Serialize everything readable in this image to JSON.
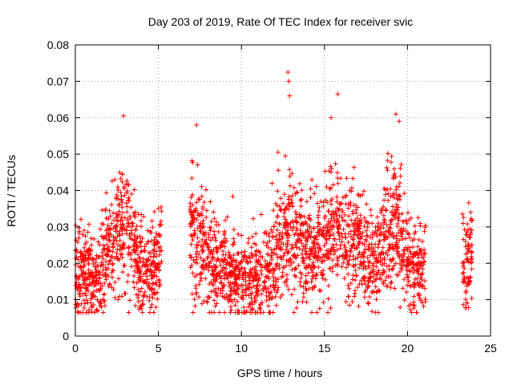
{
  "chart_data": {
    "type": "scatter",
    "title": "Day 203 of 2019, Rate Of TEC Index for receiver svic",
    "xlabel": "GPS time / hours",
    "ylabel": "ROTI / TECUs",
    "xlim": [
      0,
      25
    ],
    "ylim": [
      0,
      0.08
    ],
    "x_ticks": [
      0,
      5,
      10,
      15,
      20,
      25
    ],
    "y_ticks": [
      0,
      0.01,
      0.02,
      0.03,
      0.04,
      0.05,
      0.06,
      0.07,
      0.08
    ],
    "x_tick_labels": [
      "0",
      "5",
      "10",
      "15",
      "20",
      "25"
    ],
    "y_tick_labels": [
      "0",
      "0.01",
      "0.02",
      "0.03",
      "0.04",
      "0.05",
      "0.06",
      "0.07",
      "0.08"
    ],
    "grid": true,
    "marker": "plus",
    "color": "#ff0000",
    "profile_hours": [
      0,
      0.5,
      1,
      1.5,
      2,
      2.5,
      3,
      3.5,
      4,
      4.5,
      5.2,
      7,
      7.5,
      8,
      8.5,
      9,
      9.5,
      10,
      10.5,
      11,
      11.5,
      12,
      12.5,
      13,
      13.5,
      14,
      14.5,
      15,
      15.5,
      16,
      16.5,
      17,
      17.5,
      18,
      18.5,
      19,
      19.5,
      20,
      20.5,
      21.1,
      23.4,
      23.9
    ],
    "profile_roti": [
      0.015,
      0.018,
      0.016,
      0.018,
      0.022,
      0.028,
      0.03,
      0.024,
      0.018,
      0.016,
      0.022,
      0.028,
      0.025,
      0.022,
      0.02,
      0.018,
      0.016,
      0.015,
      0.016,
      0.016,
      0.017,
      0.02,
      0.026,
      0.028,
      0.024,
      0.022,
      0.024,
      0.026,
      0.028,
      0.028,
      0.025,
      0.024,
      0.022,
      0.02,
      0.025,
      0.032,
      0.028,
      0.02,
      0.018,
      0.018,
      0.02,
      0.022
    ],
    "gaps": [
      [
        5.2,
        6.9
      ],
      [
        21.1,
        23.3
      ]
    ],
    "point_count": 2600,
    "peaks": [
      {
        "x": 2.9,
        "y": 0.0605
      },
      {
        "x": 7.3,
        "y": 0.058
      },
      {
        "x": 12.8,
        "y": 0.0725
      },
      {
        "x": 12.85,
        "y": 0.07
      },
      {
        "x": 12.9,
        "y": 0.066
      },
      {
        "x": 15.8,
        "y": 0.0665
      },
      {
        "x": 15.4,
        "y": 0.06
      },
      {
        "x": 19.3,
        "y": 0.061
      },
      {
        "x": 19.5,
        "y": 0.059
      },
      {
        "x": 12.2,
        "y": 0.0505
      },
      {
        "x": 23.8,
        "y": 0.034
      },
      {
        "x": 5.0,
        "y": 0.035
      }
    ]
  }
}
